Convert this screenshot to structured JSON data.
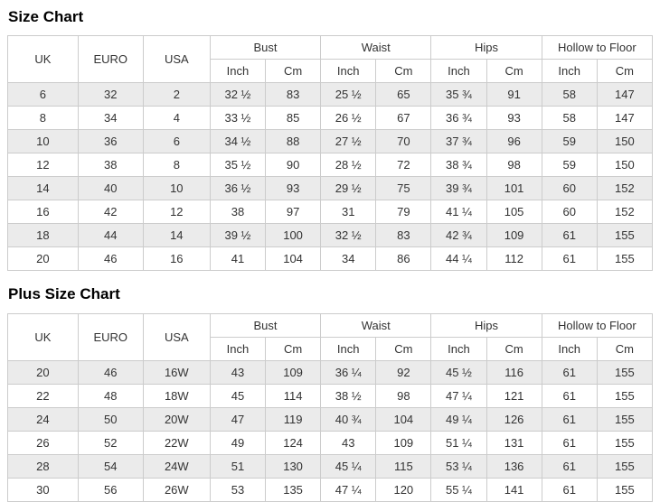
{
  "colors": {
    "border": "#cccccc",
    "row_alt": "#ebebeb",
    "text": "#333333",
    "title": "#000000",
    "background": "#ffffff"
  },
  "chart_data": [
    {
      "type": "table",
      "title": "Size Chart",
      "simple_columns": [
        "UK",
        "EURO",
        "USA"
      ],
      "grouped_columns": [
        {
          "label": "Bust",
          "sub": [
            "Inch",
            "Cm"
          ]
        },
        {
          "label": "Waist",
          "sub": [
            "Inch",
            "Cm"
          ]
        },
        {
          "label": "Hips",
          "sub": [
            "Inch",
            "Cm"
          ]
        },
        {
          "label": "Hollow to Floor",
          "sub": [
            "Inch",
            "Cm"
          ]
        }
      ],
      "rows": [
        [
          "6",
          "32",
          "2",
          "32 ½",
          "83",
          "25 ½",
          "65",
          "35 ¾",
          "91",
          "58",
          "147"
        ],
        [
          "8",
          "34",
          "4",
          "33 ½",
          "85",
          "26 ½",
          "67",
          "36 ¾",
          "93",
          "58",
          "147"
        ],
        [
          "10",
          "36",
          "6",
          "34 ½",
          "88",
          "27 ½",
          "70",
          "37 ¾",
          "96",
          "59",
          "150"
        ],
        [
          "12",
          "38",
          "8",
          "35 ½",
          "90",
          "28 ½",
          "72",
          "38 ¾",
          "98",
          "59",
          "150"
        ],
        [
          "14",
          "40",
          "10",
          "36 ½",
          "93",
          "29 ½",
          "75",
          "39 ¾",
          "101",
          "60",
          "152"
        ],
        [
          "16",
          "42",
          "12",
          "38",
          "97",
          "31",
          "79",
          "41 ¼",
          "105",
          "60",
          "152"
        ],
        [
          "18",
          "44",
          "14",
          "39 ½",
          "100",
          "32 ½",
          "83",
          "42 ¾",
          "109",
          "61",
          "155"
        ],
        [
          "20",
          "46",
          "16",
          "41",
          "104",
          "34",
          "86",
          "44 ¼",
          "112",
          "61",
          "155"
        ]
      ]
    },
    {
      "type": "table",
      "title": "Plus Size Chart",
      "simple_columns": [
        "UK",
        "EURO",
        "USA"
      ],
      "grouped_columns": [
        {
          "label": "Bust",
          "sub": [
            "Inch",
            "Cm"
          ]
        },
        {
          "label": "Waist",
          "sub": [
            "Inch",
            "Cm"
          ]
        },
        {
          "label": "Hips",
          "sub": [
            "Inch",
            "Cm"
          ]
        },
        {
          "label": "Hollow to Floor",
          "sub": [
            "Inch",
            "Cm"
          ]
        }
      ],
      "rows": [
        [
          "20",
          "46",
          "16W",
          "43",
          "109",
          "36 ¼",
          "92",
          "45 ½",
          "116",
          "61",
          "155"
        ],
        [
          "22",
          "48",
          "18W",
          "45",
          "114",
          "38 ½",
          "98",
          "47 ¼",
          "121",
          "61",
          "155"
        ],
        [
          "24",
          "50",
          "20W",
          "47",
          "119",
          "40 ¾",
          "104",
          "49 ¼",
          "126",
          "61",
          "155"
        ],
        [
          "26",
          "52",
          "22W",
          "49",
          "124",
          "43",
          "109",
          "51 ¼",
          "131",
          "61",
          "155"
        ],
        [
          "28",
          "54",
          "24W",
          "51",
          "130",
          "45 ¼",
          "115",
          "53 ¼",
          "136",
          "61",
          "155"
        ],
        [
          "30",
          "56",
          "26W",
          "53",
          "135",
          "47 ¼",
          "120",
          "55 ¼",
          "141",
          "61",
          "155"
        ]
      ]
    }
  ]
}
